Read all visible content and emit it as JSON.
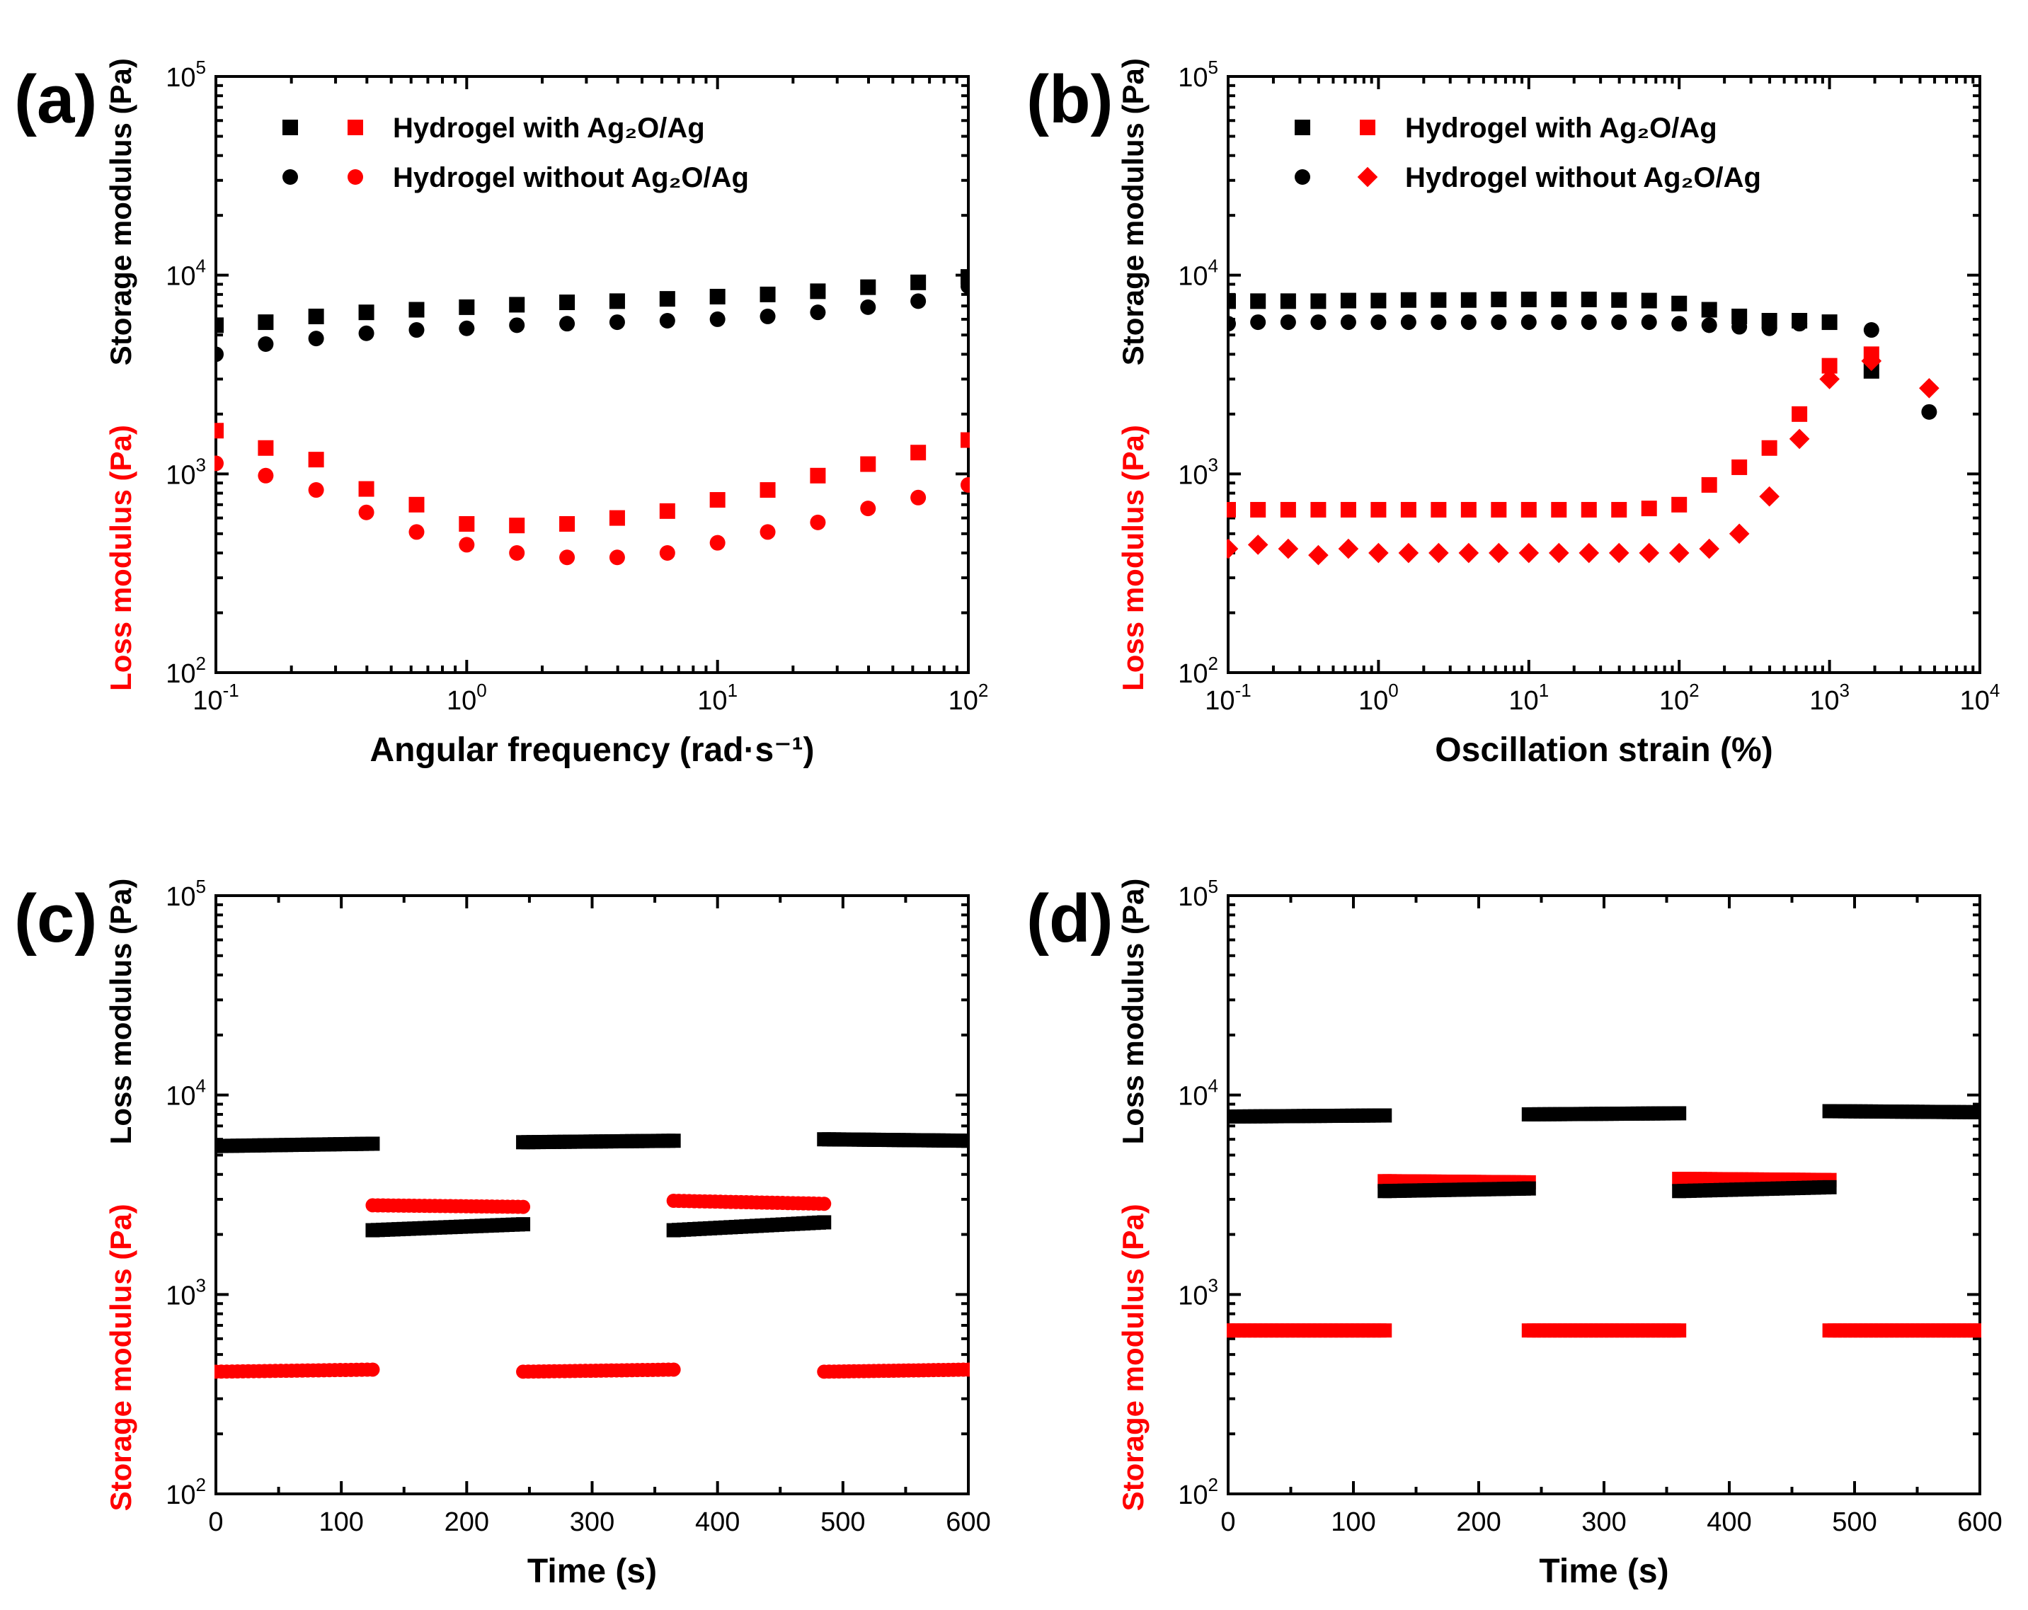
{
  "colors": {
    "black": "#000000",
    "red": "#ff0000"
  },
  "chart_data": [
    {
      "panel": "(a)",
      "type": "scatter",
      "xscale": "log",
      "yscale": "log",
      "xlim": [
        0.1,
        100
      ],
      "ylim": [
        100,
        100000
      ],
      "xlabel": "Angular frequency (rad·s⁻¹)",
      "ylabel_top": "Storage modulus (Pa)",
      "ylabel_bottom": "Loss modulus (Pa)",
      "ylabel_top_color": "#000000",
      "ylabel_bottom_color": "#ff0000",
      "legend_position": "top-left",
      "legend": [
        {
          "text": "Hydrogel with Ag₂O/Ag",
          "markers": [
            "square-black",
            "square-red"
          ]
        },
        {
          "text": "Hydrogel without Ag₂O/Ag",
          "markers": [
            "circle-black",
            "circle-red"
          ]
        }
      ],
      "x": [
        0.1,
        0.158,
        0.251,
        0.398,
        0.631,
        1.0,
        1.585,
        2.512,
        3.981,
        6.31,
        10,
        15.85,
        25.12,
        39.81,
        63.1,
        100
      ],
      "series": [
        {
          "marker": "square",
          "color": "#000000",
          "y": [
            5600,
            5800,
            6200,
            6500,
            6700,
            6900,
            7100,
            7300,
            7400,
            7600,
            7800,
            8000,
            8300,
            8700,
            9200,
            9800
          ]
        },
        {
          "marker": "square",
          "color": "#ff0000",
          "y": [
            1650,
            1350,
            1180,
            840,
            700,
            560,
            550,
            560,
            600,
            650,
            740,
            830,
            980,
            1120,
            1280,
            1480
          ]
        },
        {
          "marker": "circle",
          "color": "#000000",
          "y": [
            4000,
            4500,
            4800,
            5100,
            5300,
            5400,
            5600,
            5700,
            5800,
            5900,
            6000,
            6200,
            6500,
            6900,
            7400,
            8800
          ]
        },
        {
          "marker": "circle",
          "color": "#ff0000",
          "y": [
            1130,
            980,
            830,
            640,
            510,
            440,
            400,
            380,
            380,
            400,
            450,
            510,
            570,
            670,
            760,
            880
          ]
        }
      ]
    },
    {
      "panel": "(b)",
      "type": "scatter",
      "xscale": "log",
      "yscale": "log",
      "xlim": [
        0.1,
        10000
      ],
      "ylim": [
        100,
        100000
      ],
      "xlabel": "Oscillation strain (%)",
      "ylabel_top": "Storage modulus (Pa)",
      "ylabel_bottom": "Loss modulus (Pa)",
      "ylabel_top_color": "#000000",
      "ylabel_bottom_color": "#ff0000",
      "legend_position": "top-left",
      "legend": [
        {
          "text": "Hydrogel with Ag₂O/Ag",
          "markers": [
            "square-black",
            "square-red"
          ]
        },
        {
          "text": "Hydrogel without Ag₂O/Ag",
          "markers": [
            "circle-black",
            "diamond-red"
          ]
        }
      ],
      "x": [
        0.1,
        0.158,
        0.251,
        0.398,
        0.631,
        1.0,
        1.585,
        2.512,
        3.981,
        6.31,
        10,
        15.85,
        25.12,
        39.81,
        63.1,
        100,
        158.5,
        251.2,
        398.1,
        631,
        1000,
        1900,
        4600
      ],
      "series": [
        {
          "marker": "square",
          "color": "#000000",
          "y": [
            7400,
            7400,
            7400,
            7400,
            7450,
            7450,
            7500,
            7500,
            7500,
            7550,
            7550,
            7550,
            7550,
            7500,
            7450,
            7200,
            6700,
            6200,
            5900,
            5900,
            5800,
            3300,
            null
          ]
        },
        {
          "marker": "square",
          "color": "#ff0000",
          "y": [
            660,
            660,
            660,
            660,
            660,
            660,
            660,
            660,
            660,
            660,
            660,
            660,
            660,
            660,
            670,
            700,
            880,
            1080,
            1350,
            2000,
            3500,
            4000,
            null
          ]
        },
        {
          "marker": "circle",
          "color": "#000000",
          "y": [
            5700,
            5800,
            5800,
            5800,
            5800,
            5800,
            5800,
            5800,
            5800,
            5800,
            5800,
            5800,
            5800,
            5800,
            5800,
            5700,
            5600,
            5500,
            5400,
            5700,
            null,
            5300,
            2050
          ]
        },
        {
          "marker": "diamond",
          "color": "#ff0000",
          "y": [
            420,
            440,
            420,
            390,
            420,
            400,
            400,
            400,
            400,
            400,
            400,
            400,
            400,
            400,
            400,
            400,
            420,
            500,
            770,
            1500,
            3000,
            3700,
            2700
          ]
        }
      ]
    },
    {
      "panel": "(c)",
      "type": "scatter",
      "xscale": "linear",
      "yscale": "log",
      "xlim": [
        0,
        600
      ],
      "ylim": [
        100,
        100000
      ],
      "xlabel": "Time (s)",
      "ylabel_top": "Loss modulus (Pa)",
      "ylabel_bottom": "Storage modulus (Pa)",
      "ylabel_top_color": "#000000",
      "ylabel_bottom_color": "#ff0000",
      "segments": [
        {
          "marker": "square",
          "color": "#000000",
          "x": [
            0,
            125
          ],
          "y": [
            5550,
            5700
          ]
        },
        {
          "marker": "circle",
          "color": "#ff0000",
          "x": [
            0,
            125
          ],
          "y": [
            410,
            420
          ]
        },
        {
          "marker": "circle",
          "color": "#ff0000",
          "x": [
            125,
            245
          ],
          "y": [
            2800,
            2750
          ]
        },
        {
          "marker": "square",
          "color": "#000000",
          "x": [
            125,
            245
          ],
          "y": [
            2100,
            2250
          ]
        },
        {
          "marker": "square",
          "color": "#000000",
          "x": [
            245,
            365
          ],
          "y": [
            5800,
            5900
          ]
        },
        {
          "marker": "circle",
          "color": "#ff0000",
          "x": [
            245,
            365
          ],
          "y": [
            410,
            420
          ]
        },
        {
          "marker": "circle",
          "color": "#ff0000",
          "x": [
            365,
            485
          ],
          "y": [
            2950,
            2850
          ]
        },
        {
          "marker": "square",
          "color": "#000000",
          "x": [
            365,
            485
          ],
          "y": [
            2100,
            2300
          ]
        },
        {
          "marker": "square",
          "color": "#000000",
          "x": [
            485,
            600
          ],
          "y": [
            6000,
            5900
          ]
        },
        {
          "marker": "circle",
          "color": "#ff0000",
          "x": [
            485,
            600
          ],
          "y": [
            410,
            420
          ]
        }
      ]
    },
    {
      "panel": "(d)",
      "type": "scatter",
      "xscale": "linear",
      "yscale": "log",
      "xlim": [
        0,
        600
      ],
      "ylim": [
        100,
        100000
      ],
      "xlabel": "Time (s)",
      "ylabel_top": "Loss modulus (Pa)",
      "ylabel_bottom": "Storage modulus (Pa)",
      "ylabel_top_color": "#000000",
      "ylabel_bottom_color": "#ff0000",
      "segments": [
        {
          "marker": "square",
          "color": "#000000",
          "x": [
            0,
            125
          ],
          "y": [
            7800,
            7900
          ]
        },
        {
          "marker": "square",
          "color": "#ff0000",
          "x": [
            0,
            125
          ],
          "y": [
            660,
            660
          ]
        },
        {
          "marker": "square",
          "color": "#ff0000",
          "x": [
            125,
            240
          ],
          "y": [
            3700,
            3650
          ]
        },
        {
          "marker": "square",
          "color": "#000000",
          "x": [
            125,
            240
          ],
          "y": [
            3300,
            3400
          ]
        },
        {
          "marker": "square",
          "color": "#000000",
          "x": [
            240,
            360
          ],
          "y": [
            8000,
            8100
          ]
        },
        {
          "marker": "square",
          "color": "#ff0000",
          "x": [
            240,
            360
          ],
          "y": [
            660,
            660
          ]
        },
        {
          "marker": "square",
          "color": "#ff0000",
          "x": [
            360,
            480
          ],
          "y": [
            3800,
            3750
          ]
        },
        {
          "marker": "square",
          "color": "#000000",
          "x": [
            360,
            480
          ],
          "y": [
            3300,
            3450
          ]
        },
        {
          "marker": "square",
          "color": "#000000",
          "x": [
            480,
            600
          ],
          "y": [
            8300,
            8200
          ]
        },
        {
          "marker": "square",
          "color": "#ff0000",
          "x": [
            480,
            600
          ],
          "y": [
            660,
            660
          ]
        }
      ]
    }
  ]
}
